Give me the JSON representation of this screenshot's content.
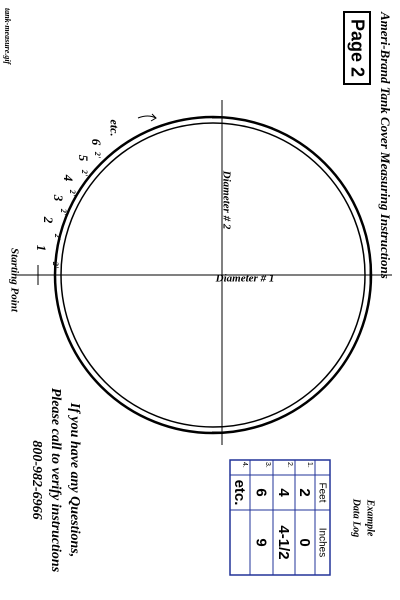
{
  "header": {
    "title": "Ameri-Brand Tank Cover Measuring Instructions",
    "page_label": "Page 2"
  },
  "diagram": {
    "diameter_1": "Diameter # 1",
    "diameter_2": "Diameter # 2",
    "start": "Starting Point",
    "continue": "etc.",
    "segments": [
      {
        "number": "1",
        "length": "2'"
      },
      {
        "number": "2",
        "length": "2'"
      },
      {
        "number": "3",
        "length": "2'"
      },
      {
        "number": "4",
        "length": "2'"
      },
      {
        "number": "5",
        "length": "2'"
      },
      {
        "number": "6",
        "length": "2'"
      }
    ]
  },
  "contact": {
    "lines": [
      "If you have any Questions,",
      "Please call to verify instructions",
      "800-982-6966"
    ]
  },
  "data_log": {
    "title": [
      "Example",
      "Data Log"
    ],
    "headers": [
      "Feet",
      "Inches"
    ],
    "rows": [
      [
        "1.",
        "2",
        "0"
      ],
      [
        "2.",
        "4",
        "4-1/2"
      ],
      [
        "3.",
        "6",
        "9"
      ],
      [
        "4.",
        "etc."
      ]
    ]
  },
  "file_name": "tank-measure.gif"
}
